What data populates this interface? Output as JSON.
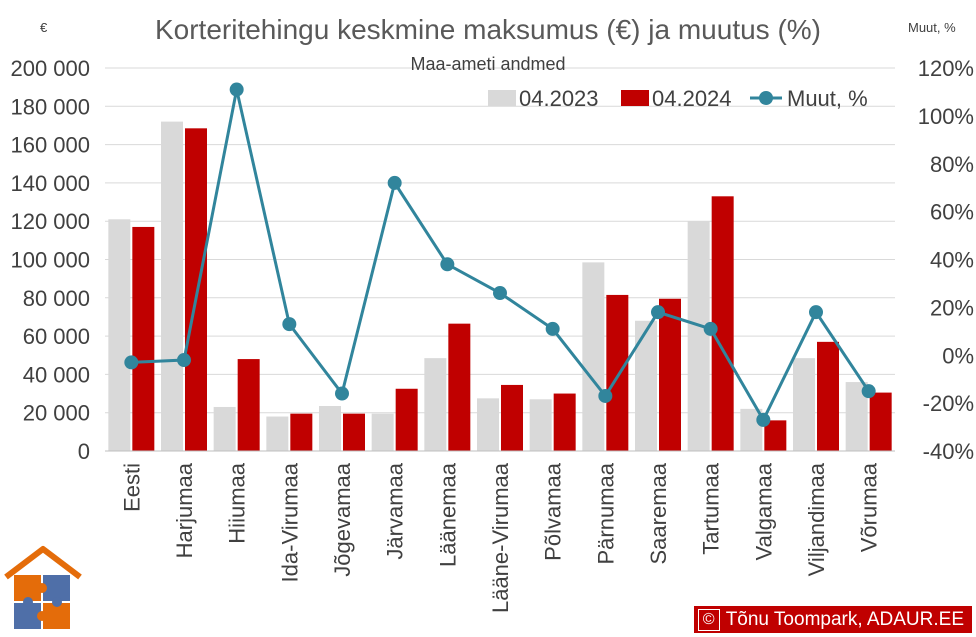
{
  "chart_data": {
    "type": "bar",
    "title": "Korteritehingu keskmine maksumus (€) ja muutus (%)",
    "subtitle": "Maa-ameti andmed",
    "left_axis_unit": "€",
    "right_axis_unit": "Muut, %",
    "categories": [
      "Eesti",
      "Harjumaa",
      "Hiiumaa",
      "Ida-Virumaa",
      "Jõgevamaa",
      "Järvamaa",
      "Läänemaa",
      "Lääne-Virumaa",
      "Põlvamaa",
      "Pärnumaa",
      "Saaremaa",
      "Tartumaa",
      "Valgamaa",
      "Viljandimaa",
      "Võrumaa"
    ],
    "series": [
      {
        "name": "04.2023",
        "type": "bar",
        "axis": "left",
        "color": "#d9d9d9",
        "values": [
          121000,
          172000,
          23000,
          18000,
          23500,
          19500,
          48500,
          27500,
          27000,
          98500,
          68000,
          120000,
          22000,
          48500,
          36000
        ]
      },
      {
        "name": "04.2024",
        "type": "bar",
        "axis": "left",
        "color": "#c00000",
        "values": [
          117000,
          168500,
          48000,
          19500,
          19500,
          32500,
          66500,
          34500,
          30000,
          81500,
          79500,
          133000,
          16000,
          57000,
          30500
        ]
      },
      {
        "name": "Muut, %",
        "type": "line",
        "axis": "right",
        "color": "#31859c",
        "values": [
          -3,
          -2,
          111,
          13,
          -16,
          72,
          38,
          26,
          11,
          -17,
          18,
          11,
          -27,
          18,
          -15
        ]
      }
    ],
    "ylim_left": [
      0,
      200000
    ],
    "yticks_left": [
      "0",
      "20 000",
      "40 000",
      "60 000",
      "80 000",
      "100 000",
      "120 000",
      "140 000",
      "160 000",
      "180 000",
      "200 000"
    ],
    "ylim_right": [
      -40,
      120
    ],
    "yticks_right": [
      "-40%",
      "-20%",
      "0%",
      "20%",
      "40%",
      "60%",
      "80%",
      "100%",
      "120%"
    ],
    "grid": "horizontal",
    "legend_position": "top-right"
  },
  "credit": {
    "copyright_symbol": "©",
    "text": "Tõnu Toompark, ADAUR.EE"
  },
  "logo_icon": "house-puzzle-logo"
}
